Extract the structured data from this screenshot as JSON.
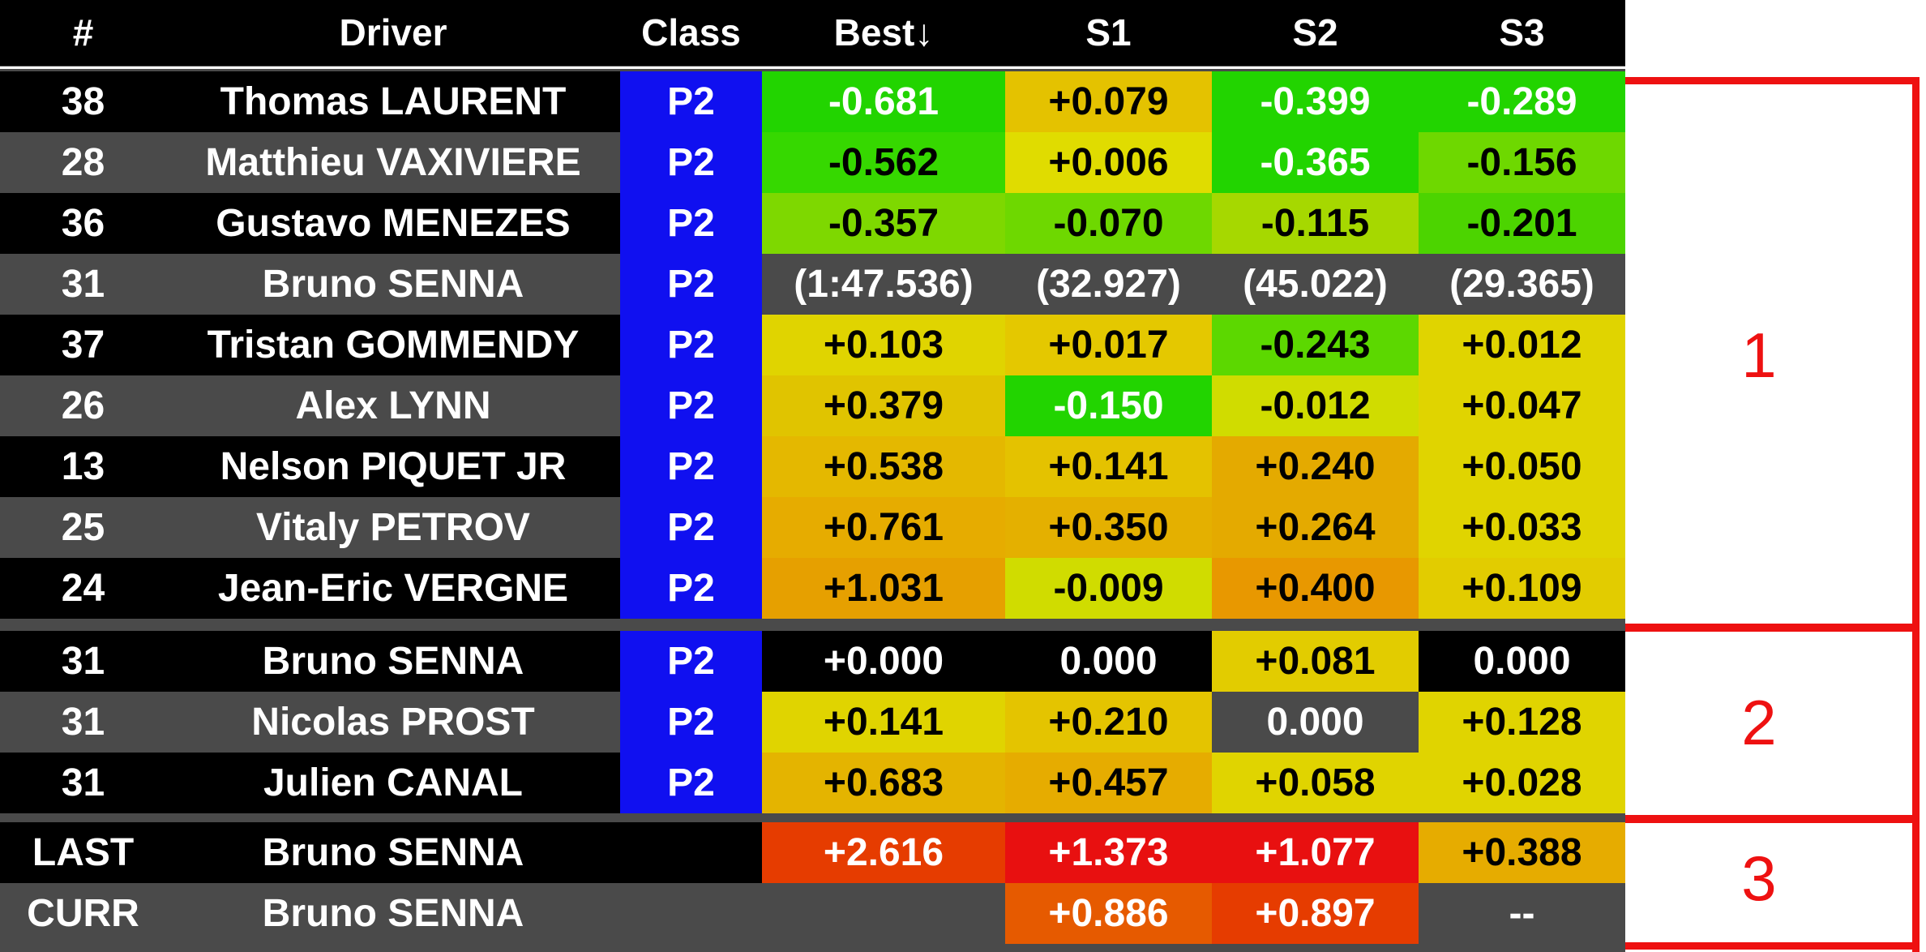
{
  "header": {
    "columns": [
      "#",
      "Driver",
      "Class",
      "Best↓",
      "S1",
      "S2",
      "S3"
    ]
  },
  "group1": [
    {
      "num": "38",
      "driver": "Thomas LAURENT",
      "class": "P2",
      "best": "-0.681",
      "s1": "+0.079",
      "s2": "-0.399",
      "s3": "-0.289"
    },
    {
      "num": "28",
      "driver": "Matthieu VAXIVIERE",
      "class": "P2",
      "best": "-0.562",
      "s1": "+0.006",
      "s2": "-0.365",
      "s3": "-0.156"
    },
    {
      "num": "36",
      "driver": "Gustavo MENEZES",
      "class": "P2",
      "best": "-0.357",
      "s1": "-0.070",
      "s2": "-0.115",
      "s3": "-0.201"
    },
    {
      "num": "31",
      "driver": "Bruno SENNA",
      "class": "P2",
      "best": "(1:47.536)",
      "s1": "(32.927)",
      "s2": "(45.022)",
      "s3": "(29.365)"
    },
    {
      "num": "37",
      "driver": "Tristan GOMMENDY",
      "class": "P2",
      "best": "+0.103",
      "s1": "+0.017",
      "s2": "-0.243",
      "s3": "+0.012"
    },
    {
      "num": "26",
      "driver": "Alex LYNN",
      "class": "P2",
      "best": "+0.379",
      "s1": "-0.150",
      "s2": "-0.012",
      "s3": "+0.047"
    },
    {
      "num": "13",
      "driver": "Nelson PIQUET JR",
      "class": "P2",
      "best": "+0.538",
      "s1": "+0.141",
      "s2": "+0.240",
      "s3": "+0.050"
    },
    {
      "num": "25",
      "driver": "Vitaly PETROV",
      "class": "P2",
      "best": "+0.761",
      "s1": "+0.350",
      "s2": "+0.264",
      "s3": "+0.033"
    },
    {
      "num": "24",
      "driver": "Jean-Eric VERGNE",
      "class": "P2",
      "best": "+1.031",
      "s1": "-0.009",
      "s2": "+0.400",
      "s3": "+0.109"
    }
  ],
  "group2": [
    {
      "num": "31",
      "driver": "Bruno SENNA",
      "class": "P2",
      "best": "+0.000",
      "s1": "0.000",
      "s2": "+0.081",
      "s3": "0.000"
    },
    {
      "num": "31",
      "driver": "Nicolas PROST",
      "class": "P2",
      "best": "+0.141",
      "s1": "+0.210",
      "s2": "0.000",
      "s3": "+0.128"
    },
    {
      "num": "31",
      "driver": "Julien CANAL",
      "class": "P2",
      "best": "+0.683",
      "s1": "+0.457",
      "s2": "+0.058",
      "s3": "+0.028"
    }
  ],
  "group3": [
    {
      "num": "LAST",
      "driver": "Bruno SENNA",
      "class": "",
      "best": "+2.616",
      "s1": "+1.373",
      "s2": "+1.077",
      "s3": "+0.388"
    },
    {
      "num": "CURR",
      "driver": "Bruno SENNA",
      "class": "",
      "best": "",
      "s1": "+0.886",
      "s2": "+0.897",
      "s3": "--"
    }
  ],
  "annotations": {
    "labels": [
      "1",
      "2",
      "3"
    ]
  },
  "colors": {
    "class_p2": "#1010f0",
    "row_dark": "#000000",
    "row_gray": "#4a4a4a",
    "annotation_red": "#ee1111",
    "g1": [
      [
        "#22d400",
        "#e4c200",
        "#22d400",
        "#22d400"
      ],
      [
        "#36d800",
        "#e0dc00",
        "#22d400",
        "#6ed800"
      ],
      [
        "#7ed800",
        "#6ed800",
        "#a6d800",
        "#4cd400"
      ],
      [
        "#4a4a4a",
        "#4a4a4a",
        "#4a4a4a",
        "#4a4a4a"
      ],
      [
        "#e0d400",
        "#e4c800",
        "#5cd800",
        "#e0d400"
      ],
      [
        "#e0c400",
        "#22d400",
        "#d0dc00",
        "#e0d400"
      ],
      [
        "#e4b800",
        "#e4c200",
        "#e4aa00",
        "#e0d400"
      ],
      [
        "#e6ac00",
        "#e4b000",
        "#e4aa00",
        "#e0d400"
      ],
      [
        "#e6a000",
        "#d0dc00",
        "#e89800",
        "#e2cc00"
      ]
    ],
    "g2": [
      [
        "#000000",
        "#000000",
        "#e2cc00",
        "#000000"
      ],
      [
        "#e0d400",
        "#e4c400",
        "#4a4a4a",
        "#e0d400"
      ],
      [
        "#e4b400",
        "#e6ac00",
        "#e0d400",
        "#e0d400"
      ]
    ],
    "g3": [
      [
        "#e63c00",
        "#e81010",
        "#e81010",
        "#e6ac00"
      ],
      [
        "#4a4a4a",
        "#e65a00",
        "#e63c00",
        "#4a4a4a"
      ]
    ]
  }
}
